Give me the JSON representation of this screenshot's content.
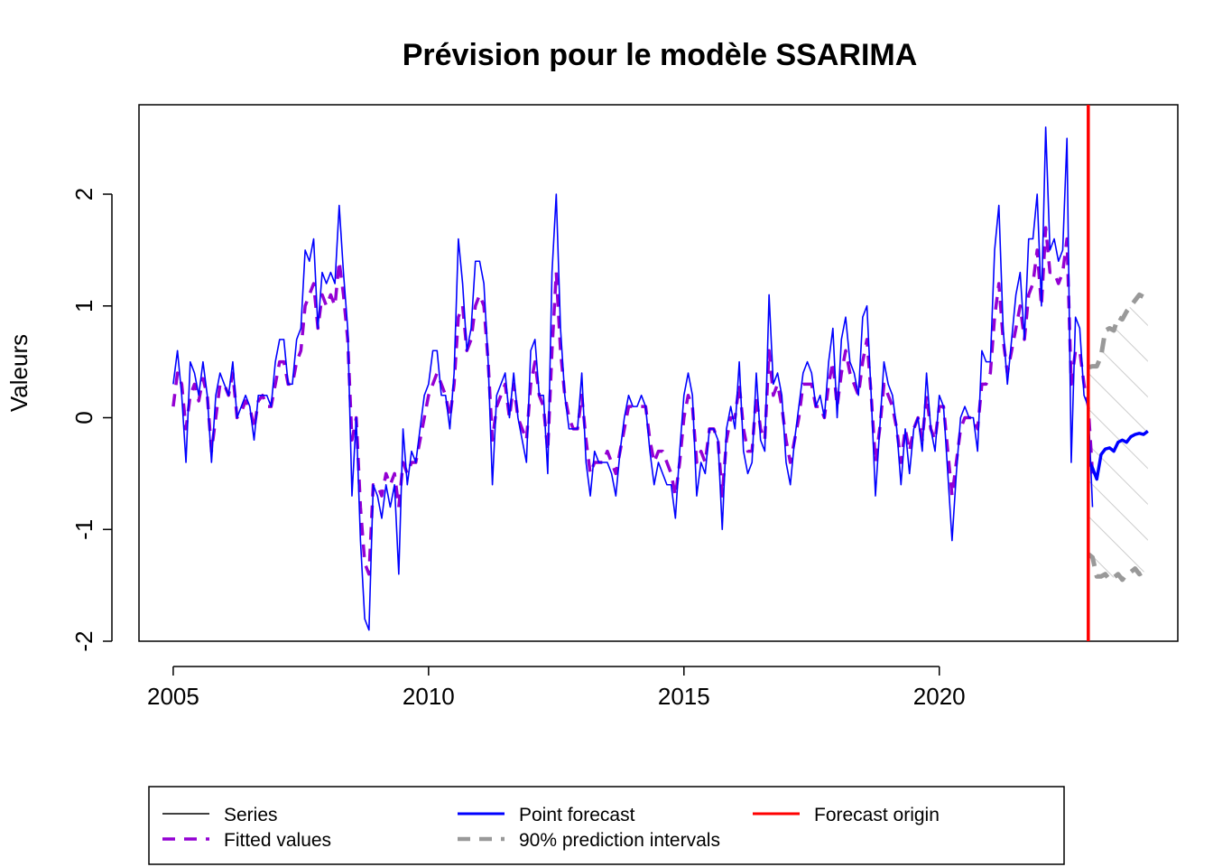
{
  "chart_data": {
    "type": "line",
    "title": "Prévision pour le modèle SSARIMA",
    "xlabel": "",
    "ylabel": "Valeurs",
    "xlim": [
      2004.33,
      2024.67
    ],
    "ylim": [
      -2.0,
      2.8
    ],
    "x_ticks": [
      2005,
      2010,
      2015,
      2020
    ],
    "x_tick_labels": [
      "2005",
      "2010",
      "2015",
      "2020"
    ],
    "y_ticks": [
      -2,
      -1,
      0,
      1,
      2
    ],
    "y_tick_labels": [
      "-2",
      "-1",
      "0",
      "1",
      "2"
    ],
    "grid": false,
    "legend_position": "bottom",
    "start": 2005.0,
    "frequency": 12,
    "series": [
      {
        "name": "Series",
        "color": "#0000ff",
        "style": "solid",
        "values": [
          0.3,
          0.6,
          0.2,
          -0.4,
          0.5,
          0.4,
          0.2,
          0.5,
          0.2,
          -0.4,
          0.2,
          0.4,
          0.3,
          0.2,
          0.5,
          0.0,
          0.1,
          0.2,
          0.1,
          -0.2,
          0.2,
          0.2,
          0.2,
          0.1,
          0.5,
          0.7,
          0.7,
          0.3,
          0.3,
          0.7,
          0.8,
          1.5,
          1.4,
          1.6,
          0.8,
          1.3,
          1.2,
          1.3,
          1.2,
          1.9,
          1.3,
          0.8,
          -0.7,
          0.0,
          -1.1,
          -1.8,
          -1.9,
          -0.6,
          -0.7,
          -0.9,
          -0.6,
          -0.8,
          -0.6,
          -1.4,
          -0.1,
          -0.6,
          -0.3,
          -0.4,
          -0.1,
          0.2,
          0.3,
          0.6,
          0.6,
          0.2,
          0.2,
          -0.1,
          0.4,
          1.6,
          1.2,
          0.6,
          0.8,
          1.4,
          1.4,
          1.2,
          0.5,
          -0.6,
          0.2,
          0.3,
          0.4,
          0.0,
          0.4,
          0.0,
          -0.2,
          -0.4,
          0.6,
          0.7,
          0.2,
          0.2,
          -0.5,
          1.3,
          2.0,
          0.8,
          0.2,
          -0.1,
          -0.1,
          -0.1,
          0.4,
          -0.4,
          -0.7,
          -0.3,
          -0.4,
          -0.4,
          -0.4,
          -0.5,
          -0.7,
          -0.3,
          0.0,
          0.2,
          0.1,
          0.1,
          0.2,
          0.1,
          -0.3,
          -0.6,
          -0.4,
          -0.5,
          -0.6,
          -0.6,
          -0.9,
          -0.3,
          0.2,
          0.4,
          0.2,
          -0.7,
          -0.4,
          -0.5,
          -0.1,
          -0.1,
          -0.2,
          -1.0,
          -0.1,
          0.1,
          -0.1,
          0.5,
          -0.3,
          -0.5,
          -0.4,
          0.4,
          -0.2,
          -0.3,
          1.1,
          0.3,
          0.4,
          0.2,
          -0.4,
          -0.6,
          -0.2,
          0.1,
          0.4,
          0.5,
          0.4,
          0.1,
          0.2,
          0.0,
          0.5,
          0.8,
          0.0,
          0.7,
          0.9,
          0.5,
          0.4,
          0.2,
          0.9,
          1.0,
          0.2,
          -0.7,
          -0.1,
          0.5,
          0.3,
          0.2,
          -0.1,
          -0.6,
          -0.1,
          -0.5,
          -0.1,
          0.0,
          -0.3,
          0.4,
          -0.1,
          -0.3,
          0.2,
          0.1,
          -0.5,
          -1.1,
          -0.5,
          0.0,
          0.1,
          0.0,
          0.0,
          -0.3,
          0.6,
          0.5,
          0.5,
          1.5,
          1.9,
          0.8,
          0.3,
          0.7,
          1.1,
          1.3,
          0.7,
          1.6,
          1.6,
          2.0,
          1.0,
          2.6,
          1.5,
          1.6,
          1.4,
          1.5,
          2.5,
          -0.4,
          0.9,
          0.8,
          0.2,
          0.1,
          -0.8
        ]
      },
      {
        "name": "Fitted values",
        "color": "#9400d3",
        "style": "dashed",
        "values": [
          0.1,
          0.4,
          0.3,
          -0.1,
          0.2,
          0.3,
          0.15,
          0.35,
          0.2,
          -0.3,
          0.0,
          0.3,
          0.3,
          0.2,
          0.4,
          0.0,
          0.05,
          0.15,
          0.1,
          -0.1,
          0.15,
          0.2,
          0.1,
          0.1,
          0.3,
          0.5,
          0.5,
          0.3,
          0.3,
          0.5,
          0.6,
          1.0,
          1.1,
          1.2,
          0.8,
          1.1,
          1.0,
          1.1,
          1.0,
          1.4,
          1.1,
          0.7,
          -0.2,
          0.0,
          -0.8,
          -1.3,
          -1.4,
          -0.6,
          -0.6,
          -0.7,
          -0.5,
          -0.6,
          -0.5,
          -0.8,
          -0.4,
          -0.5,
          -0.4,
          -0.4,
          -0.2,
          0.0,
          0.2,
          0.3,
          0.4,
          0.3,
          0.2,
          0.0,
          0.3,
          0.9,
          1.0,
          0.6,
          0.7,
          1.0,
          1.1,
          1.0,
          0.5,
          -0.2,
          0.1,
          0.2,
          0.3,
          0.0,
          0.3,
          0.0,
          -0.1,
          -0.2,
          0.3,
          0.5,
          0.2,
          0.1,
          -0.3,
          0.6,
          1.3,
          0.6,
          0.2,
          0.0,
          -0.1,
          -0.1,
          0.2,
          -0.2,
          -0.5,
          -0.4,
          -0.4,
          -0.4,
          -0.3,
          -0.4,
          -0.5,
          -0.3,
          -0.1,
          0.1,
          0.1,
          0.1,
          0.1,
          0.1,
          -0.2,
          -0.4,
          -0.3,
          -0.3,
          -0.4,
          -0.5,
          -0.7,
          -0.4,
          0.0,
          0.2,
          0.1,
          -0.4,
          -0.3,
          -0.4,
          -0.1,
          -0.1,
          -0.2,
          -0.7,
          -0.2,
          0.0,
          0.0,
          0.3,
          -0.1,
          -0.3,
          -0.3,
          0.2,
          -0.1,
          -0.2,
          0.6,
          0.2,
          0.3,
          0.1,
          -0.2,
          -0.4,
          -0.2,
          0.0,
          0.3,
          0.3,
          0.3,
          0.1,
          0.1,
          0.0,
          0.3,
          0.5,
          0.1,
          0.4,
          0.6,
          0.4,
          0.3,
          0.2,
          0.5,
          0.7,
          0.2,
          -0.4,
          -0.1,
          0.3,
          0.2,
          0.1,
          -0.1,
          -0.4,
          -0.1,
          -0.3,
          -0.1,
          0.0,
          -0.2,
          0.2,
          -0.1,
          -0.2,
          0.1,
          0.1,
          -0.3,
          -0.7,
          -0.4,
          -0.1,
          0.0,
          0.0,
          0.0,
          -0.1,
          0.3,
          0.3,
          0.4,
          0.9,
          1.2,
          0.7,
          0.4,
          0.6,
          0.8,
          1.0,
          0.7,
          1.1,
          1.2,
          1.5,
          1.0,
          1.7,
          1.3,
          1.3,
          1.2,
          1.3,
          1.6,
          0.3,
          0.6,
          0.6,
          0.3,
          0.1,
          -0.5
        ]
      },
      {
        "name": "Point forecast",
        "color": "#0000ff",
        "style": "solid",
        "x_start": 2022.917,
        "values": [
          -0.38,
          -0.45,
          -0.55,
          -0.33,
          -0.28,
          -0.27,
          -0.3,
          -0.22,
          -0.2,
          -0.22,
          -0.17,
          -0.15,
          -0.14,
          -0.15,
          -0.12
        ]
      },
      {
        "name": "90% prediction intervals",
        "color": "#999999",
        "style": "dashed",
        "x_start": 2022.917,
        "upper": [
          0.45,
          0.46,
          0.46,
          0.55,
          0.78,
          0.8,
          0.78,
          0.9,
          0.88,
          0.95,
          1.0,
          1.05,
          1.1,
          1.08,
          1.13
        ],
        "lower": [
          -1.22,
          -1.25,
          -1.42,
          -1.42,
          -1.4,
          -1.45,
          -1.43,
          -1.4,
          -1.45,
          -1.4,
          -1.38,
          -1.35,
          -1.4,
          -1.38,
          -1.38
        ]
      }
    ],
    "forecast_origin": {
      "name": "Forecast origin",
      "color": "#ff0000",
      "x": 2022.917
    }
  },
  "legend": {
    "items": [
      {
        "label": "Series",
        "color": "#000000",
        "style": "solid",
        "width": 1.5
      },
      {
        "label": "Fitted values",
        "color": "#9400d3",
        "style": "dashed",
        "width": 3.5
      },
      {
        "label": "Point forecast",
        "color": "#0000ff",
        "style": "solid",
        "width": 3
      },
      {
        "label": "90% prediction intervals",
        "color": "#999999",
        "style": "dashed",
        "width": 4.5
      },
      {
        "label": "Forecast origin",
        "color": "#ff0000",
        "style": "solid",
        "width": 3
      }
    ]
  }
}
